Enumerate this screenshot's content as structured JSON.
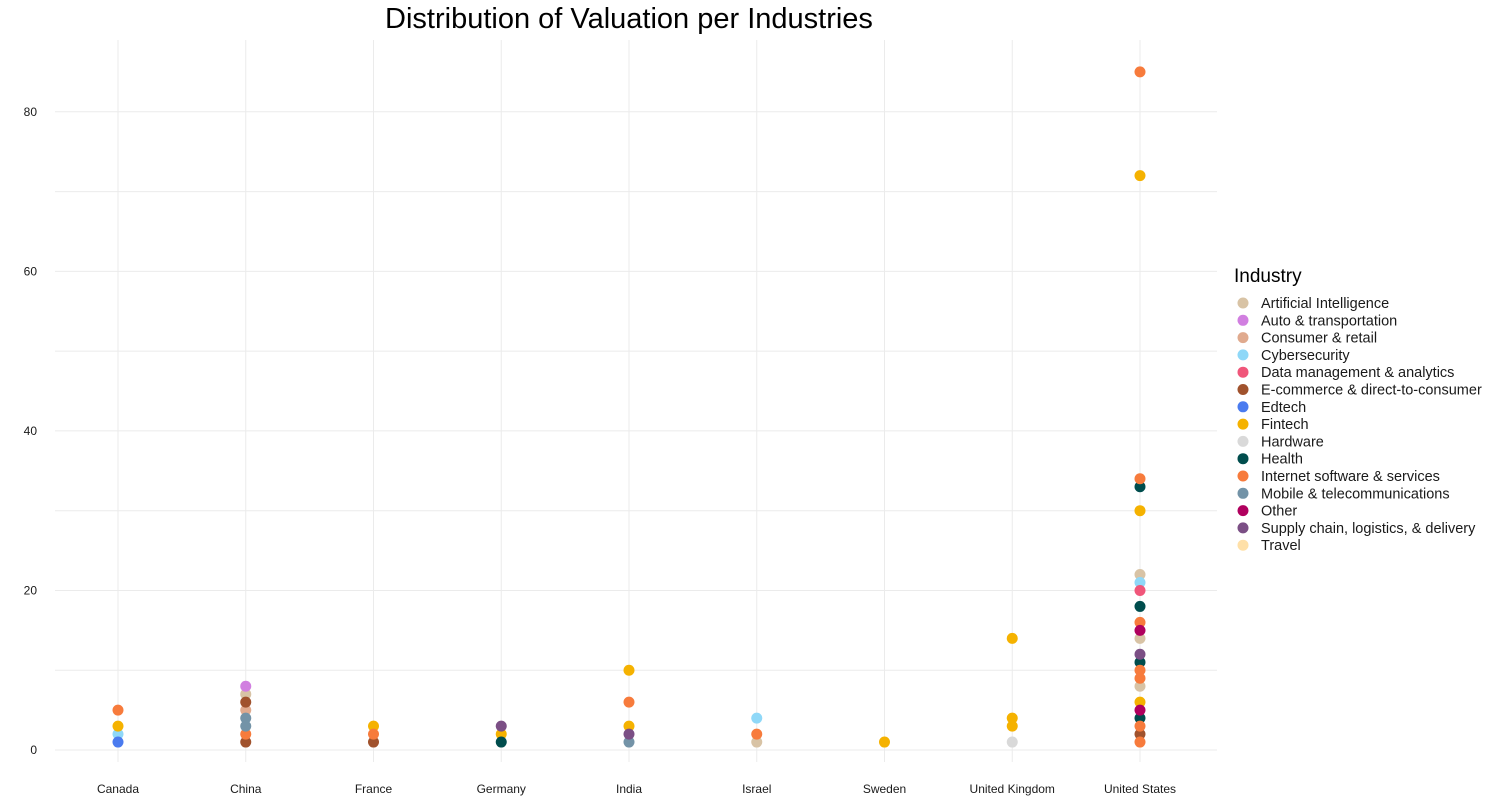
{
  "chart_data": {
    "type": "scatter",
    "title": "Distribution of Valuation per Industries",
    "xlabel": "",
    "ylabel": "",
    "categories": [
      "Canada",
      "China",
      "France",
      "Germany",
      "India",
      "Israel",
      "Sweden",
      "United Kingdom",
      "United States"
    ],
    "yticks": [
      0,
      20,
      40,
      60,
      80
    ],
    "ylim": [
      -1.5,
      89
    ],
    "grid": true,
    "legend": {
      "title": "Industry",
      "position": "right",
      "entries": [
        {
          "name": "Artificial Intelligence",
          "color": "#d8c3a5"
        },
        {
          "name": "Auto & transportation",
          "color": "#d17fe0"
        },
        {
          "name": "Consumer & retail",
          "color": "#e0aa8e"
        },
        {
          "name": "Cybersecurity",
          "color": "#8fd8f8"
        },
        {
          "name": "Data management & analytics",
          "color": "#f0567a"
        },
        {
          "name": "E-commerce & direct-to-consumer",
          "color": "#a0522d"
        },
        {
          "name": "Edtech",
          "color": "#4a7bef"
        },
        {
          "name": "Fintech",
          "color": "#f5b200"
        },
        {
          "name": "Hardware",
          "color": "#d9d9d9"
        },
        {
          "name": "Health",
          "color": "#004d4d"
        },
        {
          "name": "Internet software & services",
          "color": "#f77b3c"
        },
        {
          "name": "Mobile & telecommunications",
          "color": "#7393a7"
        },
        {
          "name": "Other",
          "color": "#b0005e"
        },
        {
          "name": "Supply chain, logistics, & delivery",
          "color": "#7b4f85"
        },
        {
          "name": "Travel",
          "color": "#ffe0a8"
        }
      ]
    },
    "series": [
      {
        "name": "Artificial Intelligence",
        "points": [
          {
            "x": "China",
            "y": 7
          },
          {
            "x": "Israel",
            "y": 1
          },
          {
            "x": "United States",
            "y": 22
          },
          {
            "x": "United States",
            "y": 14
          },
          {
            "x": "United States",
            "y": 8
          }
        ]
      },
      {
        "name": "Auto & transportation",
        "points": [
          {
            "x": "China",
            "y": 8
          }
        ]
      },
      {
        "name": "Consumer & retail",
        "points": [
          {
            "x": "China",
            "y": 5
          }
        ]
      },
      {
        "name": "Cybersecurity",
        "points": [
          {
            "x": "Canada",
            "y": 2
          },
          {
            "x": "Israel",
            "y": 4
          },
          {
            "x": "United States",
            "y": 21
          }
        ]
      },
      {
        "name": "Data management & analytics",
        "points": [
          {
            "x": "United States",
            "y": 20
          }
        ]
      },
      {
        "name": "E-commerce & direct-to-consumer",
        "points": [
          {
            "x": "China",
            "y": 6
          },
          {
            "x": "China",
            "y": 1
          },
          {
            "x": "France",
            "y": 1
          },
          {
            "x": "United States",
            "y": 2
          }
        ]
      },
      {
        "name": "Edtech",
        "points": [
          {
            "x": "Canada",
            "y": 1
          }
        ]
      },
      {
        "name": "Fintech",
        "points": [
          {
            "x": "Canada",
            "y": 3
          },
          {
            "x": "France",
            "y": 3
          },
          {
            "x": "Germany",
            "y": 2
          },
          {
            "x": "India",
            "y": 10
          },
          {
            "x": "India",
            "y": 3
          },
          {
            "x": "Sweden",
            "y": 1
          },
          {
            "x": "United Kingdom",
            "y": 14
          },
          {
            "x": "United Kingdom",
            "y": 4
          },
          {
            "x": "United Kingdom",
            "y": 3
          },
          {
            "x": "United States",
            "y": 72
          },
          {
            "x": "United States",
            "y": 30
          },
          {
            "x": "United States",
            "y": 6
          }
        ]
      },
      {
        "name": "Hardware",
        "points": [
          {
            "x": "United Kingdom",
            "y": 1
          }
        ]
      },
      {
        "name": "Health",
        "points": [
          {
            "x": "Germany",
            "y": 1
          },
          {
            "x": "United States",
            "y": 33
          },
          {
            "x": "United States",
            "y": 18
          },
          {
            "x": "United States",
            "y": 11
          },
          {
            "x": "United States",
            "y": 4
          }
        ]
      },
      {
        "name": "Internet software & services",
        "points": [
          {
            "x": "Canada",
            "y": 5
          },
          {
            "x": "China",
            "y": 2
          },
          {
            "x": "France",
            "y": 2
          },
          {
            "x": "India",
            "y": 6
          },
          {
            "x": "Israel",
            "y": 2
          },
          {
            "x": "United States",
            "y": 85
          },
          {
            "x": "United States",
            "y": 34
          },
          {
            "x": "United States",
            "y": 16
          },
          {
            "x": "United States",
            "y": 10
          },
          {
            "x": "United States",
            "y": 9
          },
          {
            "x": "United States",
            "y": 3
          },
          {
            "x": "United States",
            "y": 1
          }
        ]
      },
      {
        "name": "Mobile & telecommunications",
        "points": [
          {
            "x": "China",
            "y": 4
          },
          {
            "x": "China",
            "y": 3
          },
          {
            "x": "India",
            "y": 1
          }
        ]
      },
      {
        "name": "Other",
        "points": [
          {
            "x": "United States",
            "y": 15
          },
          {
            "x": "United States",
            "y": 5
          }
        ]
      },
      {
        "name": "Supply chain, logistics, & delivery",
        "points": [
          {
            "x": "Germany",
            "y": 3
          },
          {
            "x": "India",
            "y": 2
          },
          {
            "x": "United States",
            "y": 12
          }
        ]
      },
      {
        "name": "Travel",
        "points": []
      }
    ]
  }
}
